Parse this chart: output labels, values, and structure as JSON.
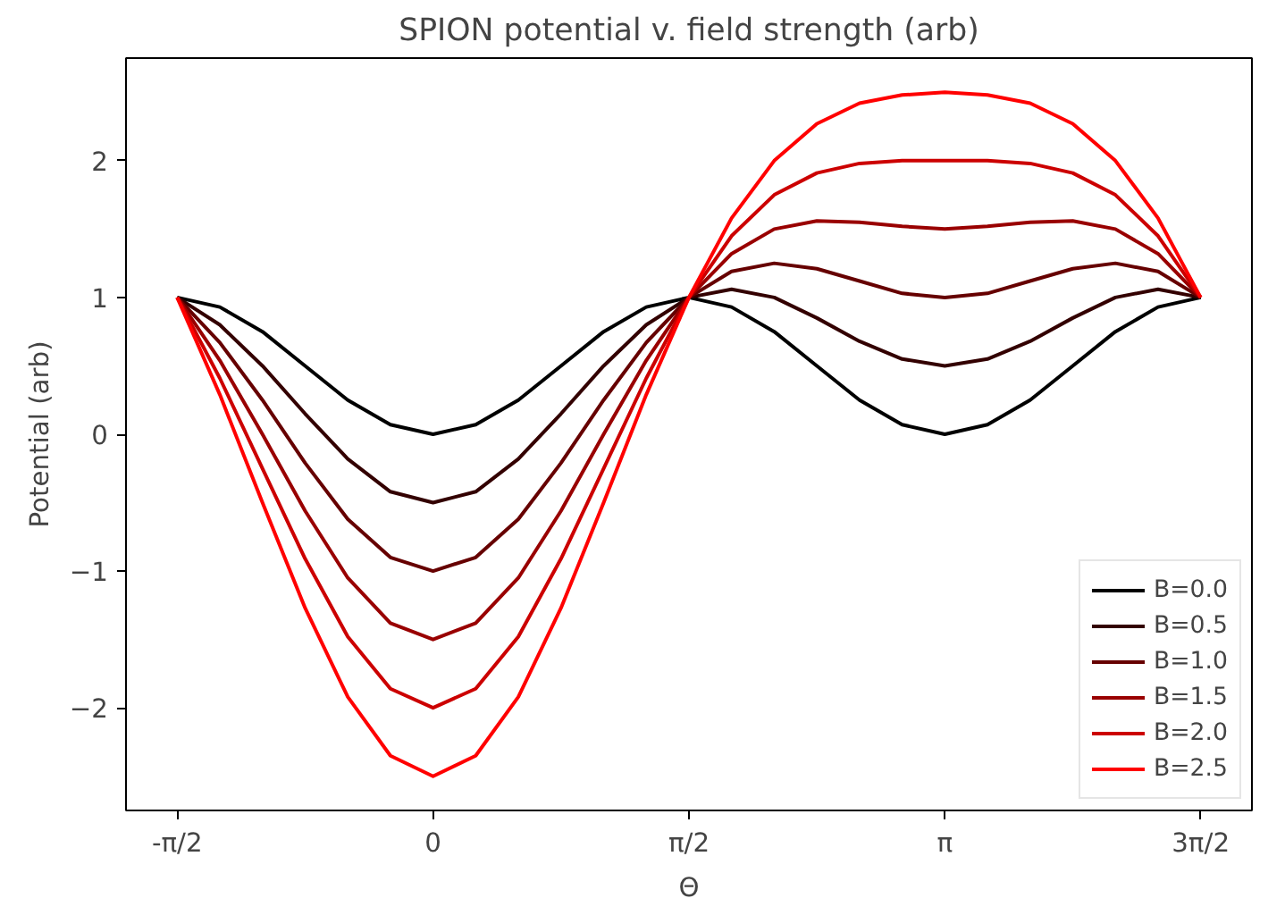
{
  "chart_data": {
    "type": "line",
    "title": "SPION potential v. field strength (arb)",
    "xlabel": "Θ",
    "ylabel": "Potential (arb)",
    "x": [
      -1.5708,
      -1.309,
      -1.0472,
      -0.7854,
      -0.5236,
      -0.2618,
      0,
      0.2618,
      0.5236,
      0.7854,
      1.0472,
      1.309,
      1.5708,
      1.8326,
      2.0944,
      2.3562,
      2.618,
      2.8798,
      3.1416,
      3.4034,
      3.6652,
      3.927,
      4.1888,
      4.4506,
      4.7124
    ],
    "xlim": [
      -1.885,
      5.027
    ],
    "xticks": [
      {
        "value": -1.5708,
        "label": "-π/2"
      },
      {
        "value": 0,
        "label": "0"
      },
      {
        "value": 1.5708,
        "label": "π/2"
      },
      {
        "value": 3.1416,
        "label": "π"
      },
      {
        "value": 4.7124,
        "label": "3π/2"
      }
    ],
    "ylim": [
      -2.75,
      2.75
    ],
    "yticks": [
      -2,
      -1,
      0,
      1,
      2
    ],
    "grid": false,
    "legend": "bottom right",
    "line_style": "solid",
    "marker": "none",
    "series": [
      {
        "name": "B=0.0",
        "color": "#000000",
        "values": [
          1,
          0.93,
          0.75,
          0.5,
          0.25,
          0.07,
          0,
          0.07,
          0.25,
          0.5,
          0.75,
          0.93,
          1,
          0.93,
          0.75,
          0.5,
          0.25,
          0.07,
          0,
          0.07,
          0.25,
          0.5,
          0.75,
          0.93,
          1
        ]
      },
      {
        "name": "B=0.5",
        "color": "#330000",
        "values": [
          1,
          0.8,
          0.5,
          0.15,
          -0.18,
          -0.42,
          -0.5,
          -0.42,
          -0.18,
          0.15,
          0.5,
          0.8,
          1,
          1.06,
          1.0,
          0.85,
          0.68,
          0.55,
          0.5,
          0.55,
          0.68,
          0.85,
          1.0,
          1.06,
          1
        ]
      },
      {
        "name": "B=1.0",
        "color": "#660000",
        "values": [
          1,
          0.67,
          0.25,
          -0.21,
          -0.62,
          -0.9,
          -1,
          -0.9,
          -0.62,
          -0.21,
          0.25,
          0.67,
          1,
          1.19,
          1.25,
          1.21,
          1.12,
          1.03,
          1,
          1.03,
          1.12,
          1.21,
          1.25,
          1.19,
          1
        ]
      },
      {
        "name": "B=1.5",
        "color": "#990000",
        "values": [
          1,
          0.54,
          0,
          -0.56,
          -1.05,
          -1.38,
          -1.5,
          -1.38,
          -1.05,
          -0.56,
          0,
          0.54,
          1,
          1.32,
          1.5,
          1.56,
          1.55,
          1.52,
          1.5,
          1.52,
          1.55,
          1.56,
          1.5,
          1.32,
          1
        ]
      },
      {
        "name": "B=2.0",
        "color": "#cc0000",
        "values": [
          1,
          0.41,
          -0.25,
          -0.91,
          -1.48,
          -1.86,
          -2,
          -1.86,
          -1.48,
          -0.91,
          -0.25,
          0.41,
          1,
          1.45,
          1.75,
          1.91,
          1.98,
          2.0,
          2,
          2.0,
          1.98,
          1.91,
          1.75,
          1.45,
          1
        ]
      },
      {
        "name": "B=2.5",
        "color": "#ff0000",
        "values": [
          1,
          0.29,
          -0.5,
          -1.27,
          -1.92,
          -2.35,
          -2.5,
          -2.35,
          -1.92,
          -1.27,
          -0.5,
          0.29,
          1,
          1.58,
          2.0,
          2.27,
          2.42,
          2.48,
          2.5,
          2.48,
          2.42,
          2.27,
          2.0,
          1.58,
          1
        ]
      }
    ]
  }
}
